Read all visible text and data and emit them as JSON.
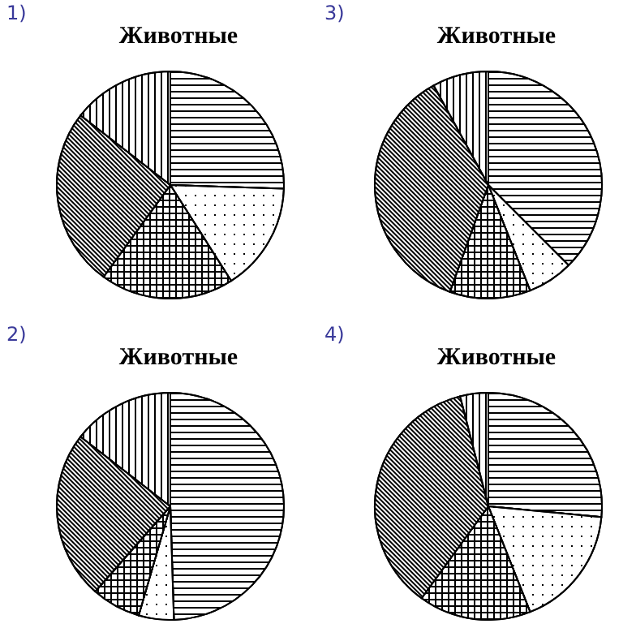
{
  "chart_data": [
    {
      "type": "pie",
      "title": "Животные",
      "annotations": [
        "1)"
      ],
      "categories": [
        null,
        null,
        null,
        null,
        null
      ],
      "values": [
        25.5,
        15.5,
        19,
        25.5,
        14.5
      ],
      "colors": [
        "#ffffff",
        "#ffffff",
        "#ffffff",
        "#ffffff",
        "#ffffff"
      ]
    },
    {
      "type": "pie",
      "title": "Животные",
      "annotations": [
        "3)"
      ],
      "categories": [
        null,
        null,
        null,
        null,
        null
      ],
      "values": [
        37.5,
        6.5,
        11.5,
        36.5,
        8
      ],
      "colors": [
        "#ffffff",
        "#ffffff",
        "#ffffff",
        "#ffffff",
        "#ffffff"
      ]
    },
    {
      "type": "pie",
      "title": "Животные",
      "annotations": [
        "2)"
      ],
      "categories": [
        null,
        null,
        null,
        null,
        null
      ],
      "values": [
        49.5,
        5,
        7,
        24,
        14.5
      ],
      "colors": [
        "#ffffff",
        "#ffffff",
        "#ffffff",
        "#ffffff",
        "#ffffff"
      ]
    },
    {
      "type": "pie",
      "title": "Животные",
      "annotations": [
        "4)"
      ],
      "categories": [
        null,
        null,
        null,
        null,
        null
      ],
      "values": [
        26.5,
        17.5,
        16,
        36,
        4
      ],
      "colors": [
        "#ffffff",
        "#ffffff",
        "#ffffff",
        "#ffffff",
        "#ffffff"
      ]
    }
  ]
}
